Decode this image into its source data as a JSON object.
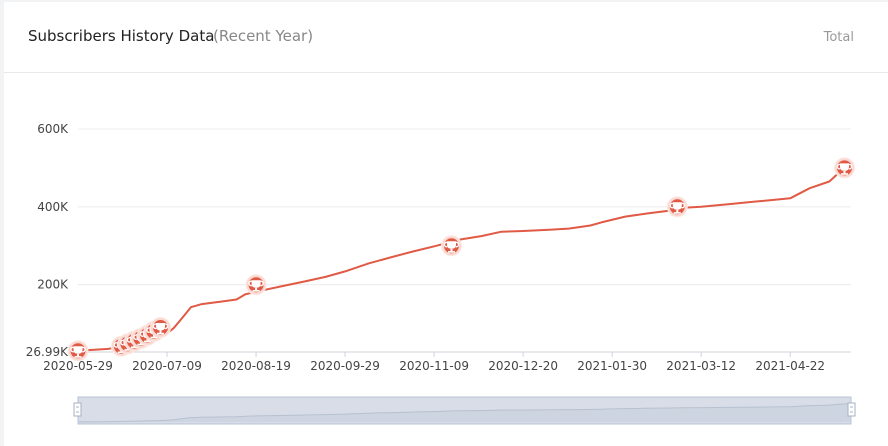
{
  "header": {
    "title": "Subscribers History Data",
    "subtitle": "(Recent Year)",
    "total_label": "Total"
  },
  "chart_data": {
    "type": "line",
    "title": "Subscribers History Data",
    "subtitle": "(Recent Year)",
    "xlabel": "",
    "ylabel": "",
    "x_tick_labels": [
      "2020-05-29",
      "2020-07-09",
      "2020-08-19",
      "2020-09-29",
      "2020-11-09",
      "2020-12-20",
      "2021-01-30",
      "2021-03-12",
      "2021-04-22"
    ],
    "y_tick_labels": [
      "26.99K",
      "200K",
      "400K",
      "600K"
    ],
    "y_tick_values": [
      26990,
      200000,
      400000,
      600000
    ],
    "ylim": [
      26990,
      600000
    ],
    "xlim": [
      "2020-05-29",
      "2021-05-20"
    ],
    "grid": true,
    "line_color": "#e05a45",
    "milestone_icon": "trophy-icon",
    "series": [
      {
        "x": [
          "2020-05-29",
          "2020-06-12",
          "2020-06-19",
          "2020-06-26",
          "2020-07-03",
          "2020-07-09",
          "2020-07-12",
          "2020-07-15",
          "2020-07-20",
          "2020-07-25",
          "2020-08-05",
          "2020-08-10",
          "2020-08-14",
          "2020-08-19",
          "2020-08-30",
          "2020-09-10",
          "2020-09-20",
          "2020-09-29",
          "2020-10-10",
          "2020-10-20",
          "2020-10-30",
          "2020-11-10",
          "2020-11-20",
          "2020-12-01",
          "2020-12-10",
          "2020-12-20",
          "2021-01-01",
          "2021-01-10",
          "2021-01-20",
          "2021-01-25",
          "2021-02-05",
          "2021-02-15",
          "2021-02-25",
          "2021-03-05",
          "2021-03-12",
          "2021-03-25",
          "2021-04-05",
          "2021-04-15",
          "2021-04-22",
          "2021-05-01",
          "2021-05-10",
          "2021-05-15",
          "2021-05-20"
        ],
        "y": [
          30000,
          35000,
          42000,
          50000,
          62000,
          75000,
          88000,
          108000,
          142000,
          150000,
          158000,
          162000,
          175000,
          182000,
          195000,
          208000,
          220000,
          234000,
          255000,
          270000,
          285000,
          300000,
          315000,
          325000,
          336000,
          338000,
          341000,
          344000,
          352000,
          360000,
          375000,
          383000,
          390000,
          398000,
          400000,
          407000,
          413000,
          418000,
          422000,
          448000,
          465000,
          490000,
          500000
        ]
      }
    ],
    "milestones": [
      {
        "x": "2020-05-29",
        "y": 30000
      },
      {
        "x": "2020-06-18",
        "y": 42000
      },
      {
        "x": "2020-06-21",
        "y": 48000
      },
      {
        "x": "2020-06-24",
        "y": 55000
      },
      {
        "x": "2020-06-27",
        "y": 62000
      },
      {
        "x": "2020-06-30",
        "y": 70000
      },
      {
        "x": "2020-07-03",
        "y": 80000
      },
      {
        "x": "2020-07-06",
        "y": 90000
      },
      {
        "x": "2020-08-19",
        "y": 200000
      },
      {
        "x": "2020-11-17",
        "y": 300000
      },
      {
        "x": "2021-03-01",
        "y": 400000
      },
      {
        "x": "2021-05-17",
        "y": 500000
      }
    ]
  }
}
